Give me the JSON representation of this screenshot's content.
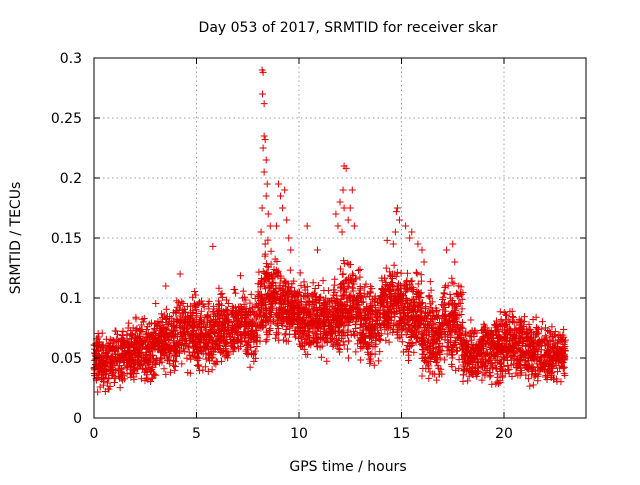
{
  "chart_data": {
    "type": "scatter",
    "title": "Day 053 of 2017, SRMTID for receiver skar",
    "xlabel": "GPS time / hours",
    "ylabel": "SRMTID / TECUs",
    "xlim": [
      0,
      24
    ],
    "ylim": [
      0,
      0.3
    ],
    "x_ticks": [
      0,
      5,
      10,
      15,
      20
    ],
    "x_tick_labels": [
      "0",
      "5",
      "10",
      "15",
      "20"
    ],
    "y_ticks": [
      0,
      0.05,
      0.1,
      0.15,
      0.2,
      0.25,
      0.3
    ],
    "y_tick_labels": [
      "0",
      "0.05",
      "0.1",
      "0.15",
      "0.2",
      "0.25",
      "0.3"
    ],
    "grid": true,
    "marker": "+",
    "color": "#e00000",
    "x_data_range": [
      0,
      23
    ],
    "series": [
      {
        "name": "SRMTID",
        "bands": [
          {
            "x": [
              0.0,
              1.0
            ],
            "y": [
              0.015,
              0.08
            ],
            "n": 180
          },
          {
            "x": [
              1.0,
              2.0
            ],
            "y": [
              0.02,
              0.085
            ],
            "n": 170
          },
          {
            "x": [
              2.0,
              3.0
            ],
            "y": [
              0.025,
              0.09
            ],
            "n": 170
          },
          {
            "x": [
              3.0,
              4.0
            ],
            "y": [
              0.03,
              0.1
            ],
            "n": 170
          },
          {
            "x": [
              4.0,
              5.0
            ],
            "y": [
              0.035,
              0.11
            ],
            "n": 170
          },
          {
            "x": [
              5.0,
              6.0
            ],
            "y": [
              0.025,
              0.11
            ],
            "n": 170
          },
          {
            "x": [
              6.0,
              7.0
            ],
            "y": [
              0.035,
              0.115
            ],
            "n": 170
          },
          {
            "x": [
              7.0,
              8.0
            ],
            "y": [
              0.035,
              0.12
            ],
            "n": 170
          },
          {
            "x": [
              8.0,
              9.0
            ],
            "y": [
              0.05,
              0.15
            ],
            "n": 190
          },
          {
            "x": [
              9.0,
              10.0
            ],
            "y": [
              0.055,
              0.13
            ],
            "n": 190
          },
          {
            "x": [
              10.0,
              11.0
            ],
            "y": [
              0.045,
              0.125
            ],
            "n": 190
          },
          {
            "x": [
              11.0,
              12.0
            ],
            "y": [
              0.04,
              0.12
            ],
            "n": 190
          },
          {
            "x": [
              12.0,
              13.0
            ],
            "y": [
              0.045,
              0.14
            ],
            "n": 190
          },
          {
            "x": [
              13.0,
              14.0
            ],
            "y": [
              0.035,
              0.12
            ],
            "n": 180
          },
          {
            "x": [
              14.0,
              15.0
            ],
            "y": [
              0.05,
              0.14
            ],
            "n": 190
          },
          {
            "x": [
              15.0,
              16.0
            ],
            "y": [
              0.045,
              0.13
            ],
            "n": 190
          },
          {
            "x": [
              16.0,
              17.0
            ],
            "y": [
              0.015,
              0.12
            ],
            "n": 180
          },
          {
            "x": [
              17.0,
              18.0
            ],
            "y": [
              0.03,
              0.13
            ],
            "n": 170
          },
          {
            "x": [
              18.0,
              19.0
            ],
            "y": [
              0.02,
              0.085
            ],
            "n": 170
          },
          {
            "x": [
              19.0,
              20.0
            ],
            "y": [
              0.02,
              0.095
            ],
            "n": 170
          },
          {
            "x": [
              20.0,
              21.0
            ],
            "y": [
              0.025,
              0.1
            ],
            "n": 170
          },
          {
            "x": [
              21.0,
              22.0
            ],
            "y": [
              0.02,
              0.09
            ],
            "n": 170
          },
          {
            "x": [
              22.0,
              23.0
            ],
            "y": [
              0.02,
              0.085
            ],
            "n": 170
          }
        ],
        "peaks": [
          [
            8.2,
            0.29
          ],
          [
            8.25,
            0.288
          ],
          [
            8.22,
            0.27
          ],
          [
            8.3,
            0.262
          ],
          [
            8.3,
            0.235
          ],
          [
            8.35,
            0.232
          ],
          [
            8.25,
            0.225
          ],
          [
            8.4,
            0.215
          ],
          [
            8.3,
            0.205
          ],
          [
            8.45,
            0.195
          ],
          [
            8.4,
            0.185
          ],
          [
            8.2,
            0.175
          ],
          [
            8.5,
            0.17
          ],
          [
            8.15,
            0.155
          ],
          [
            8.6,
            0.16
          ],
          [
            8.35,
            0.145
          ],
          [
            9.0,
            0.195
          ],
          [
            9.1,
            0.185
          ],
          [
            9.3,
            0.19
          ],
          [
            9.2,
            0.175
          ],
          [
            8.9,
            0.16
          ],
          [
            9.4,
            0.165
          ],
          [
            9.5,
            0.15
          ],
          [
            9.6,
            0.14
          ],
          [
            12.2,
            0.21
          ],
          [
            12.3,
            0.208
          ],
          [
            12.15,
            0.19
          ],
          [
            12.0,
            0.18
          ],
          [
            12.2,
            0.175
          ],
          [
            12.6,
            0.19
          ],
          [
            12.5,
            0.175
          ],
          [
            11.8,
            0.17
          ],
          [
            12.4,
            0.165
          ],
          [
            12.7,
            0.16
          ],
          [
            11.9,
            0.16
          ],
          [
            12.1,
            0.155
          ],
          [
            14.8,
            0.175
          ],
          [
            14.75,
            0.172
          ],
          [
            14.9,
            0.165
          ],
          [
            14.7,
            0.155
          ],
          [
            15.2,
            0.16
          ],
          [
            15.5,
            0.155
          ],
          [
            15.4,
            0.15
          ],
          [
            15.8,
            0.145
          ],
          [
            14.3,
            0.148
          ],
          [
            14.6,
            0.145
          ],
          [
            16.0,
            0.14
          ],
          [
            16.1,
            0.13
          ],
          [
            17.2,
            0.14
          ],
          [
            17.5,
            0.145
          ],
          [
            17.6,
            0.13
          ],
          [
            10.4,
            0.16
          ],
          [
            10.9,
            0.14
          ],
          [
            5.8,
            0.143
          ],
          [
            4.2,
            0.12
          ],
          [
            3.5,
            0.11
          ]
        ]
      }
    ]
  }
}
